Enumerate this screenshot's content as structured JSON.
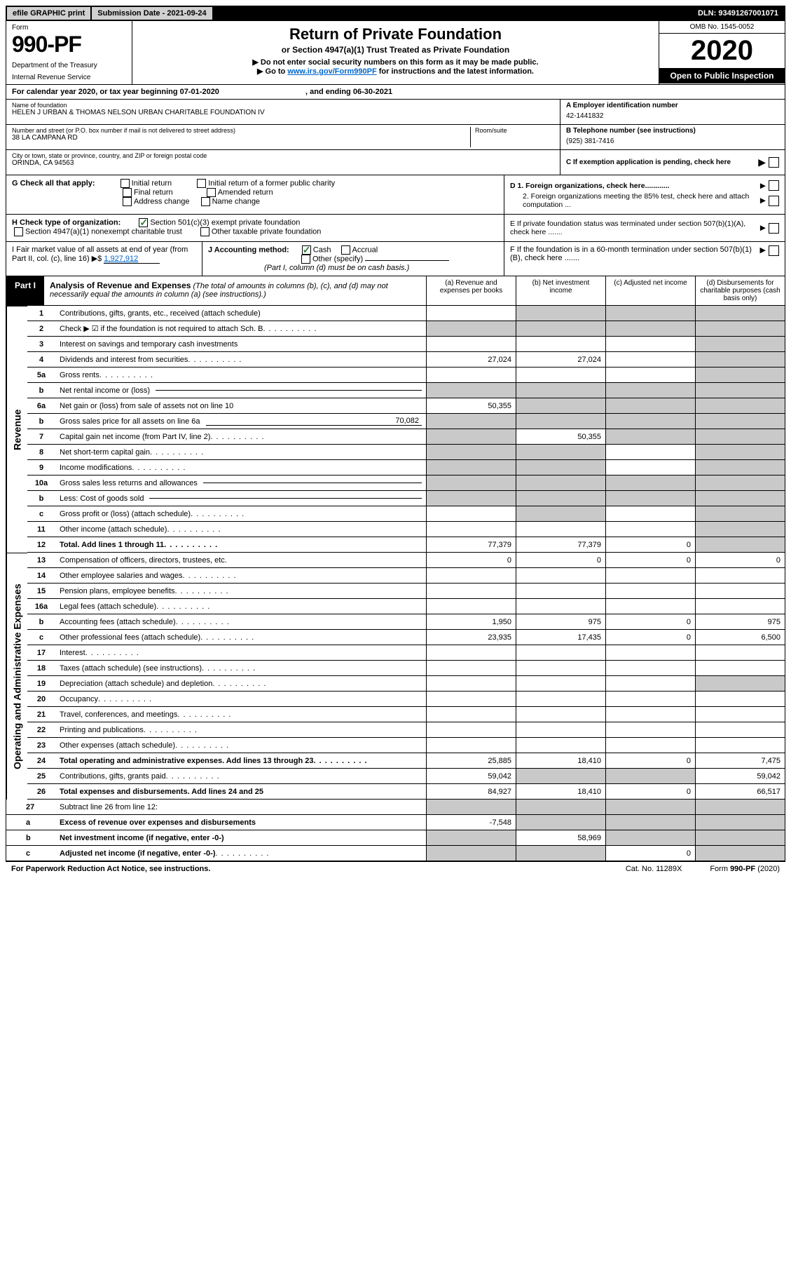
{
  "topbar": {
    "efile": "efile GRAPHIC print",
    "submission_label": "Submission Date - ",
    "submission_date": "2021-09-24",
    "dln_label": "DLN: ",
    "dln": "93491267001071"
  },
  "header": {
    "form_word": "Form",
    "form_number": "990-PF",
    "dept1": "Department of the Treasury",
    "dept2": "Internal Revenue Service",
    "title": "Return of Private Foundation",
    "subtitle": "or Section 4947(a)(1) Trust Treated as Private Foundation",
    "note1": "▶ Do not enter social security numbers on this form as it may be made public.",
    "note2_pre": "▶ Go to ",
    "note2_link": "www.irs.gov/Form990PF",
    "note2_post": " for instructions and the latest information.",
    "omb": "OMB No. 1545-0052",
    "year": "2020",
    "open": "Open to Public Inspection"
  },
  "cal_year": {
    "pre": "For calendar year 2020, or tax year beginning ",
    "begin": "07-01-2020",
    "mid": " , and ending ",
    "end": "06-30-2021"
  },
  "entity": {
    "name_label": "Name of foundation",
    "name": "HELEN J URBAN & THOMAS NELSON URBAN CHARITABLE FOUNDATION IV",
    "addr_label": "Number and street (or P.O. box number if mail is not delivered to street address)",
    "addr": "38 LA CAMPANA RD",
    "room_label": "Room/suite",
    "city_label": "City or town, state or province, country, and ZIP or foreign postal code",
    "city": "ORINDA, CA  94563",
    "a_label": "A Employer identification number",
    "a_val": "42-1441832",
    "b_label": "B Telephone number (see instructions)",
    "b_val": "(925) 381-7416",
    "c_label": "C If exemption application is pending, check here",
    "d1": "D 1. Foreign organizations, check here............",
    "d2": "2. Foreign organizations meeting the 85% test, check here and attach computation ...",
    "e": "E  If private foundation status was terminated under section 507(b)(1)(A), check here .......",
    "f": "F  If the foundation is in a 60-month termination under section 507(b)(1)(B), check here .......",
    "g_label": "G Check all that apply:",
    "g_initial": "Initial return",
    "g_initial_former": "Initial return of a former public charity",
    "g_final": "Final return",
    "g_amended": "Amended return",
    "g_address": "Address change",
    "g_name": "Name change",
    "h_label": "H Check type of organization:",
    "h_501c3": "Section 501(c)(3) exempt private foundation",
    "h_4947": "Section 4947(a)(1) nonexempt charitable trust",
    "h_other": "Other taxable private foundation",
    "i_label": "I Fair market value of all assets at end of year (from Part II, col. (c), line 16) ▶$ ",
    "i_val": "1,927,912",
    "j_label": "J Accounting method:",
    "j_cash": "Cash",
    "j_accrual": "Accrual",
    "j_other": "Other (specify)",
    "j_note": "(Part I, column (d) must be on cash basis.)"
  },
  "part1": {
    "tab": "Part I",
    "title": "Analysis of Revenue and Expenses",
    "title_note": " (The total of amounts in columns (b), (c), and (d) may not necessarily equal the amounts in column (a) (see instructions).)",
    "col_a": "(a)   Revenue and expenses per books",
    "col_b": "(b)  Net investment income",
    "col_c": "(c)  Adjusted net income",
    "col_d": "(d)  Disbursements for charitable purposes (cash basis only)"
  },
  "labels": {
    "revenue": "Revenue",
    "oae": "Operating and Administrative Expenses"
  },
  "rows": [
    {
      "n": "1",
      "d": "Contributions, gifts, grants, etc., received (attach schedule)",
      "a": "",
      "b": "grey",
      "c": "grey",
      "dd": "grey"
    },
    {
      "n": "2",
      "d": "Check ▶ ☑ if the foundation is not required to attach Sch. B",
      "dots": true,
      "a": "grey",
      "b": "grey",
      "c": "grey",
      "dd": "grey",
      "checkgreen": true
    },
    {
      "n": "3",
      "d": "Interest on savings and temporary cash investments",
      "a": "",
      "b": "",
      "c": "",
      "dd": "grey"
    },
    {
      "n": "4",
      "d": "Dividends and interest from securities",
      "dots": true,
      "a": "27,024",
      "b": "27,024",
      "c": "",
      "dd": "grey"
    },
    {
      "n": "5a",
      "d": "Gross rents",
      "dots": true,
      "a": "",
      "b": "",
      "c": "",
      "dd": "grey"
    },
    {
      "n": "b",
      "d": "Net rental income or (loss)",
      "inline": "",
      "a": "grey",
      "b": "grey",
      "c": "grey",
      "dd": "grey"
    },
    {
      "n": "6a",
      "d": "Net gain or (loss) from sale of assets not on line 10",
      "a": "50,355",
      "b": "grey",
      "c": "grey",
      "dd": "grey"
    },
    {
      "n": "b",
      "d": "Gross sales price for all assets on line 6a",
      "inline": "70,082",
      "a": "grey",
      "b": "grey",
      "c": "grey",
      "dd": "grey"
    },
    {
      "n": "7",
      "d": "Capital gain net income (from Part IV, line 2)",
      "dots": true,
      "a": "grey",
      "b": "50,355",
      "c": "grey",
      "dd": "grey"
    },
    {
      "n": "8",
      "d": "Net short-term capital gain",
      "dots": true,
      "a": "grey",
      "b": "grey",
      "c": "",
      "dd": "grey"
    },
    {
      "n": "9",
      "d": "Income modifications",
      "dots": true,
      "a": "grey",
      "b": "grey",
      "c": "",
      "dd": "grey"
    },
    {
      "n": "10a",
      "d": "Gross sales less returns and allowances",
      "inline": "",
      "a": "grey",
      "b": "grey",
      "c": "grey",
      "dd": "grey"
    },
    {
      "n": "b",
      "d": "Less: Cost of goods sold",
      "dots": true,
      "inline": "",
      "a": "grey",
      "b": "grey",
      "c": "grey",
      "dd": "grey"
    },
    {
      "n": "c",
      "d": "Gross profit or (loss) (attach schedule)",
      "dots": true,
      "a": "",
      "b": "grey",
      "c": "",
      "dd": "grey"
    },
    {
      "n": "11",
      "d": "Other income (attach schedule)",
      "dots": true,
      "a": "",
      "b": "",
      "c": "",
      "dd": "grey"
    },
    {
      "n": "12",
      "d": "Total. Add lines 1 through 11",
      "dots": true,
      "bold": true,
      "a": "77,379",
      "b": "77,379",
      "c": "0",
      "dd": "grey"
    },
    {
      "n": "13",
      "d": "Compensation of officers, directors, trustees, etc.",
      "a": "0",
      "b": "0",
      "c": "0",
      "dd": "0"
    },
    {
      "n": "14",
      "d": "Other employee salaries and wages",
      "dots": true,
      "a": "",
      "b": "",
      "c": "",
      "dd": ""
    },
    {
      "n": "15",
      "d": "Pension plans, employee benefits",
      "dots": true,
      "a": "",
      "b": "",
      "c": "",
      "dd": ""
    },
    {
      "n": "16a",
      "d": "Legal fees (attach schedule)",
      "dots": true,
      "a": "",
      "b": "",
      "c": "",
      "dd": ""
    },
    {
      "n": "b",
      "d": "Accounting fees (attach schedule)",
      "dots": true,
      "a": "1,950",
      "b": "975",
      "c": "0",
      "dd": "975"
    },
    {
      "n": "c",
      "d": "Other professional fees (attach schedule)",
      "dots": true,
      "a": "23,935",
      "b": "17,435",
      "c": "0",
      "dd": "6,500"
    },
    {
      "n": "17",
      "d": "Interest",
      "dots": true,
      "a": "",
      "b": "",
      "c": "",
      "dd": ""
    },
    {
      "n": "18",
      "d": "Taxes (attach schedule) (see instructions)",
      "dots": true,
      "a": "",
      "b": "",
      "c": "",
      "dd": ""
    },
    {
      "n": "19",
      "d": "Depreciation (attach schedule) and depletion",
      "dots": true,
      "a": "",
      "b": "",
      "c": "",
      "dd": "grey"
    },
    {
      "n": "20",
      "d": "Occupancy",
      "dots": true,
      "a": "",
      "b": "",
      "c": "",
      "dd": ""
    },
    {
      "n": "21",
      "d": "Travel, conferences, and meetings",
      "dots": true,
      "a": "",
      "b": "",
      "c": "",
      "dd": ""
    },
    {
      "n": "22",
      "d": "Printing and publications",
      "dots": true,
      "a": "",
      "b": "",
      "c": "",
      "dd": ""
    },
    {
      "n": "23",
      "d": "Other expenses (attach schedule)",
      "dots": true,
      "a": "",
      "b": "",
      "c": "",
      "dd": ""
    },
    {
      "n": "24",
      "d": "Total operating and administrative expenses. Add lines 13 through 23",
      "dots": true,
      "bold": true,
      "a": "25,885",
      "b": "18,410",
      "c": "0",
      "dd": "7,475"
    },
    {
      "n": "25",
      "d": "Contributions, gifts, grants paid",
      "dots": true,
      "a": "59,042",
      "b": "grey",
      "c": "grey",
      "dd": "59,042"
    },
    {
      "n": "26",
      "d": "Total expenses and disbursements. Add lines 24 and 25",
      "bold": true,
      "a": "84,927",
      "b": "18,410",
      "c": "0",
      "dd": "66,517"
    }
  ],
  "row27": [
    {
      "n": "27",
      "d": "Subtract line 26 from line 12:",
      "a": "grey",
      "b": "grey",
      "c": "grey",
      "dd": "grey"
    },
    {
      "n": "a",
      "d": "Excess of revenue over expenses and disbursements",
      "bold": true,
      "a": "-7,548",
      "b": "grey",
      "c": "grey",
      "dd": "grey"
    },
    {
      "n": "b",
      "d": "Net investment income (if negative, enter -0-)",
      "bold": true,
      "a": "grey",
      "b": "58,969",
      "c": "grey",
      "dd": "grey"
    },
    {
      "n": "c",
      "d": "Adjusted net income (if negative, enter -0-)",
      "bold": true,
      "dots": true,
      "a": "grey",
      "b": "grey",
      "c": "0",
      "dd": "grey"
    }
  ],
  "footer": {
    "left": "For Paperwork Reduction Act Notice, see instructions.",
    "center": "Cat. No. 11289X",
    "right": "Form 990-PF (2020)"
  }
}
